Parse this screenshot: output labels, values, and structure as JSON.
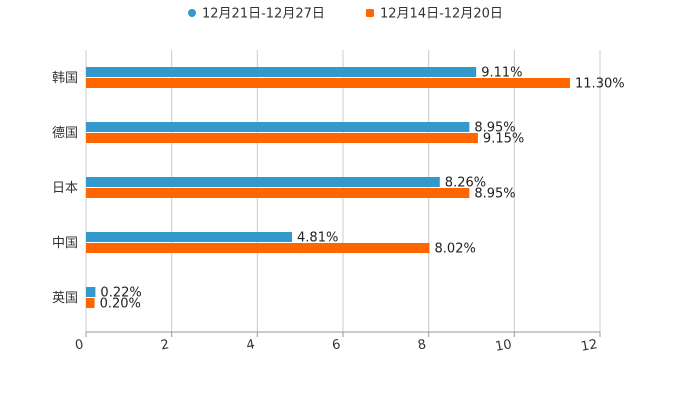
{
  "chart_data": {
    "type": "bar",
    "orientation": "horizontal",
    "categories": [
      "韩国",
      "德国",
      "日本",
      "中国",
      "英国"
    ],
    "series": [
      {
        "name": "12月21日-12月27日",
        "color": "#3399cc",
        "values": [
          9.11,
          8.95,
          8.26,
          4.81,
          0.22
        ],
        "labels": [
          "9.11%",
          "8.95%",
          "8.26%",
          "4.81%",
          "0.22%"
        ]
      },
      {
        "name": "12月14日-12月20日",
        "color": "#ff6600",
        "values": [
          11.3,
          9.15,
          8.95,
          8.02,
          0.2
        ],
        "labels": [
          "11.30%",
          "9.15%",
          "8.95%",
          "8.02%",
          "0.20%"
        ]
      }
    ],
    "xlim": [
      0,
      12
    ],
    "xticks": [
      "0",
      "2",
      "4",
      "6",
      "8",
      "10",
      "12"
    ],
    "grid": true,
    "legend_position": "top-center",
    "title": "",
    "xlabel": "",
    "ylabel": "",
    "axis_color": "#999999",
    "grid_color": "#cccccc"
  }
}
